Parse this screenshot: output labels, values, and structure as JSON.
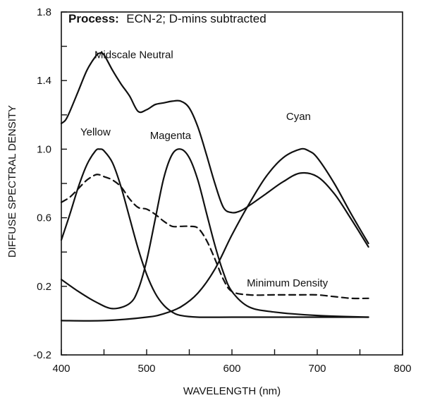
{
  "chart_data": {
    "type": "line",
    "title_bold": "Process:",
    "title_rest": "ECN-2; D-mins subtracted",
    "xlabel": "WAVELENGTH (nm)",
    "ylabel": "DIFFUSE SPECTRAL DENSITY",
    "xlim": [
      400,
      800
    ],
    "ylim": [
      -0.2,
      1.8
    ],
    "x_ticks": [
      400,
      500,
      600,
      700,
      800
    ],
    "x_tick_labels": [
      "400",
      "500",
      "600",
      "700",
      "800"
    ],
    "y_ticks": [
      -0.2,
      0.2,
      0.6,
      1.0,
      1.4,
      1.8
    ],
    "y_tick_labels": [
      "-0.2",
      "0.2",
      "0.6",
      "1.0",
      "1.4",
      "1.8"
    ],
    "grid": false,
    "series": [
      {
        "name": "Yellow",
        "style": "solid",
        "x": [
          400,
          410,
          420,
          430,
          440,
          445,
          450,
          460,
          470,
          480,
          490,
          500,
          510,
          520,
          530,
          540,
          560,
          600,
          650,
          700,
          760
        ],
        "y": [
          0.47,
          0.62,
          0.78,
          0.91,
          0.99,
          1.0,
          0.99,
          0.92,
          0.78,
          0.6,
          0.42,
          0.27,
          0.16,
          0.09,
          0.05,
          0.03,
          0.02,
          0.02,
          0.02,
          0.02,
          0.02
        ]
      },
      {
        "name": "Magenta",
        "style": "solid",
        "x": [
          400,
          420,
          440,
          460,
          480,
          490,
          500,
          510,
          520,
          530,
          540,
          550,
          560,
          570,
          580,
          590,
          600,
          620,
          650,
          700,
          760
        ],
        "y": [
          0.24,
          0.17,
          0.11,
          0.07,
          0.1,
          0.18,
          0.35,
          0.59,
          0.83,
          0.97,
          1.0,
          0.95,
          0.82,
          0.63,
          0.44,
          0.28,
          0.17,
          0.08,
          0.05,
          0.03,
          0.02
        ]
      },
      {
        "name": "Cyan",
        "style": "solid",
        "x": [
          400,
          450,
          500,
          520,
          540,
          560,
          580,
          600,
          620,
          640,
          660,
          680,
          690,
          700,
          720,
          740,
          760
        ],
        "y": [
          0.0,
          0.0,
          0.02,
          0.04,
          0.08,
          0.16,
          0.3,
          0.5,
          0.68,
          0.84,
          0.95,
          1.0,
          0.99,
          0.95,
          0.8,
          0.62,
          0.45
        ]
      },
      {
        "name": "Midscale Neutral",
        "style": "solid",
        "x": [
          400,
          405,
          410,
          420,
          430,
          440,
          445,
          450,
          460,
          470,
          480,
          490,
          500,
          510,
          520,
          530,
          540,
          550,
          560,
          570,
          580,
          590,
          600,
          610,
          620,
          640,
          660,
          680,
          700,
          720,
          740,
          760
        ],
        "y": [
          1.15,
          1.17,
          1.22,
          1.34,
          1.46,
          1.54,
          1.56,
          1.55,
          1.46,
          1.38,
          1.31,
          1.22,
          1.23,
          1.26,
          1.27,
          1.28,
          1.28,
          1.24,
          1.13,
          0.97,
          0.8,
          0.66,
          0.63,
          0.64,
          0.67,
          0.74,
          0.81,
          0.86,
          0.84,
          0.74,
          0.59,
          0.43
        ]
      },
      {
        "name": "Minimum Density",
        "style": "dashed",
        "x": [
          400,
          410,
          420,
          430,
          440,
          445,
          450,
          460,
          470,
          480,
          490,
          500,
          510,
          520,
          530,
          540,
          550,
          560,
          570,
          580,
          590,
          600,
          620,
          650,
          680,
          700,
          720,
          740,
          760
        ],
        "y": [
          0.69,
          0.72,
          0.77,
          0.82,
          0.85,
          0.85,
          0.84,
          0.82,
          0.78,
          0.71,
          0.66,
          0.65,
          0.62,
          0.58,
          0.55,
          0.55,
          0.55,
          0.54,
          0.47,
          0.36,
          0.24,
          0.17,
          0.15,
          0.15,
          0.15,
          0.15,
          0.14,
          0.13,
          0.13
        ]
      }
    ],
    "annotations": [
      {
        "text": "Midscale Neutral",
        "x": 485,
        "y": 1.53
      },
      {
        "text": "Yellow",
        "x": 440,
        "y": 1.08
      },
      {
        "text": "Magenta",
        "x": 528,
        "y": 1.06
      },
      {
        "text": "Cyan",
        "x": 678,
        "y": 1.17
      },
      {
        "text": "Minimum Density",
        "x": 665,
        "y": 0.2
      }
    ]
  }
}
